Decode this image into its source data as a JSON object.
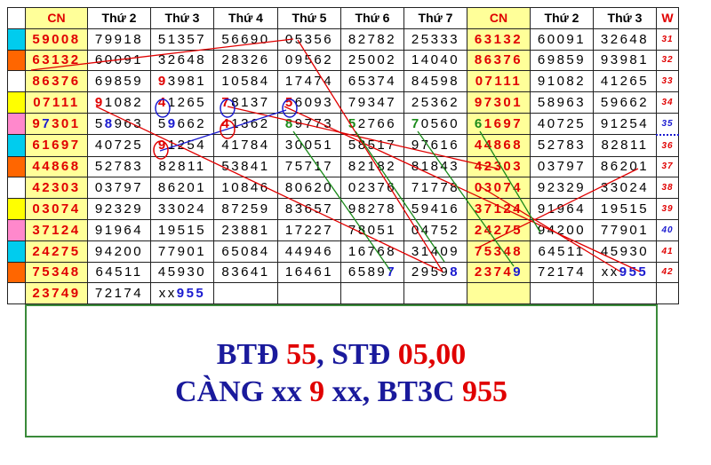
{
  "header": [
    "CN",
    "Thứ 2",
    "Thứ 3",
    "Thứ 4",
    "Thứ 5",
    "Thứ 6",
    "Thứ 7",
    "CN",
    "Thứ 2",
    "Thứ 3",
    "W"
  ],
  "colors": {
    "red": "#e00000",
    "blue": "#1a1ad0",
    "green": "#1a8a1a",
    "cn_bg": "#ffff99",
    "cyan": "#00ccee",
    "orange": "#ff6600",
    "yellow": "#ffff00",
    "pink": "#ff88cc",
    "frame": "#3a8a3a"
  },
  "rows": [
    {
      "marker": "cyan",
      "cells": [
        "59008",
        "79918",
        "51357",
        "56690",
        "05356",
        "82782",
        "25333",
        "63132",
        "60091",
        "32648"
      ],
      "week": "31"
    },
    {
      "marker": "orange",
      "cells": [
        "63132",
        "60091",
        "32648",
        "28326",
        "09562",
        "25002",
        "14040",
        "86376",
        "69859",
        "93981"
      ],
      "week": "32"
    },
    {
      "marker": "none",
      "cells": [
        "86376",
        "69859",
        "93981",
        "10584",
        "17474",
        "65374",
        "84598",
        "07111",
        "91082",
        "41265"
      ],
      "week": "33"
    },
    {
      "marker": "yellow",
      "cells": [
        "07111",
        "91082",
        "41265",
        "78137",
        "56093",
        "79347",
        "25362",
        "97301",
        "58963",
        "59662"
      ],
      "week": "34"
    },
    {
      "marker": "pink",
      "cells": [
        "97301",
        "58963",
        "59662",
        "41362",
        "89773",
        "52766",
        "70560",
        "61697",
        "40725",
        "91254"
      ],
      "week": "35"
    },
    {
      "marker": "cyan",
      "cells": [
        "61697",
        "40725",
        "91254",
        "41784",
        "30051",
        "58517",
        "97616",
        "44868",
        "52783",
        "82811"
      ],
      "week": "36"
    },
    {
      "marker": "orange",
      "cells": [
        "44868",
        "52783",
        "82811",
        "53841",
        "75717",
        "82182",
        "81843",
        "42303",
        "03797",
        "86201"
      ],
      "week": "37"
    },
    {
      "marker": "none",
      "cells": [
        "42303",
        "03797",
        "86201",
        "10846",
        "80620",
        "02376",
        "71778",
        "03074",
        "92329",
        "33024"
      ],
      "week": "38"
    },
    {
      "marker": "yellow",
      "cells": [
        "03074",
        "92329",
        "33024",
        "87259",
        "83657",
        "98278",
        "59416",
        "37124",
        "91964",
        "19515"
      ],
      "week": "39"
    },
    {
      "marker": "pink",
      "cells": [
        "37124",
        "91964",
        "19515",
        "23881",
        "17227",
        "78051",
        "04752",
        "24275",
        "94200",
        "77901"
      ],
      "week": "40"
    },
    {
      "marker": "cyan",
      "cells": [
        "24275",
        "94200",
        "77901",
        "65084",
        "44946",
        "16768",
        "31409",
        "75348",
        "64511",
        "45930"
      ],
      "week": "41"
    },
    {
      "marker": "orange",
      "cells": [
        "75348",
        "64511",
        "45930",
        "83641",
        "16461",
        "65897",
        "29598",
        "23749",
        "72174",
        "xx955"
      ],
      "week": "42"
    },
    {
      "marker": "none",
      "cells": [
        "23749",
        "72174",
        "xx955",
        "",
        "",
        "",
        "",
        "",
        "",
        ""
      ],
      "week": ""
    }
  ],
  "summary": {
    "line1": [
      {
        "text": "BTĐ ",
        "hl": false
      },
      {
        "text": "55",
        "hl": true
      },
      {
        "text": ", STĐ ",
        "hl": false
      },
      {
        "text": "05,00",
        "hl": true
      }
    ],
    "line2": [
      {
        "text": "CÀNG xx ",
        "hl": false
      },
      {
        "text": "9",
        "hl": true
      },
      {
        "text": " xx, BT3C ",
        "hl": false
      },
      {
        "text": "955",
        "hl": true
      }
    ]
  }
}
